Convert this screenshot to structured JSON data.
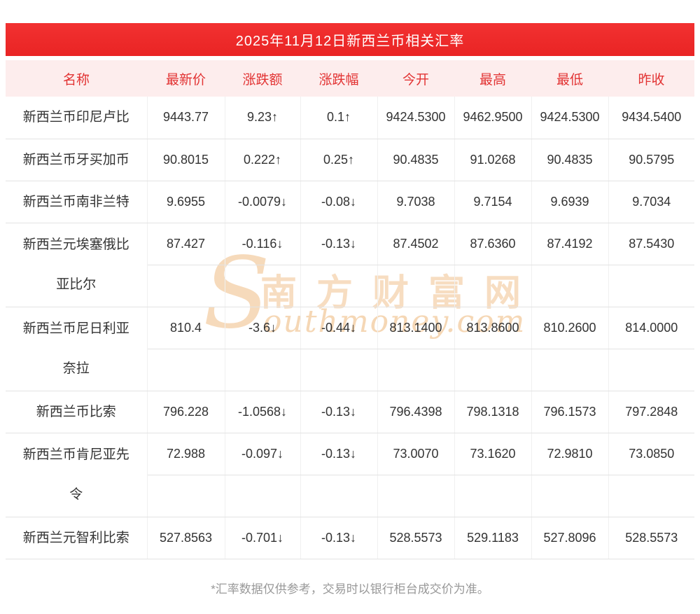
{
  "page": {
    "title": "2025年11月12日新西兰币相关汇率",
    "footnote": "*汇率数据仅供参考，交易时以银行柜台成交价为准。"
  },
  "watermark": {
    "initial": "S",
    "cn": "南方财富网",
    "en": "outhmoney.com"
  },
  "colors": {
    "banner_red": "#f23131",
    "header_bg": "#fdeded",
    "header_text": "#e23333",
    "up_red": "#e62c2c",
    "down_green": "#1ba31b",
    "watermark_orange": "#f0bd85"
  },
  "table": {
    "headers": [
      "名称",
      "最新价",
      "涨跌额",
      "涨跌幅",
      "今开",
      "最高",
      "最低",
      "昨收"
    ],
    "rows": [
      {
        "name": "新西兰币印尼卢比",
        "latest": "9443.77",
        "change": "9.23↑",
        "change_pct": "0.1↑",
        "open": "9424.5300",
        "high": "9462.9500",
        "low": "9424.5300",
        "prev_close": "9434.5400",
        "trend": "up"
      },
      {
        "name": "新西兰币牙买加币",
        "latest": "90.8015",
        "change": "0.222↑",
        "change_pct": "0.25↑",
        "open": "90.4835",
        "high": "91.0268",
        "low": "90.4835",
        "prev_close": "90.5795",
        "trend": "up"
      },
      {
        "name": "新西兰币南非兰特",
        "latest": "9.6955",
        "change": "-0.0079↓",
        "change_pct": "-0.08↓",
        "open": "9.7038",
        "high": "9.7154",
        "low": "9.6939",
        "prev_close": "9.7034",
        "trend": "down"
      },
      {
        "name": "新西兰元埃塞俄比\n亚比尔",
        "latest": "87.427",
        "change": "-0.116↓",
        "change_pct": "-0.13↓",
        "open": "87.4502",
        "high": "87.6360",
        "low": "87.4192",
        "prev_close": "87.5430",
        "trend": "down"
      },
      {
        "name": "新西兰币尼日利亚\n奈拉",
        "latest": "810.4",
        "change": "-3.6↓",
        "change_pct": "-0.44↓",
        "open": "813.1400",
        "high": "813.8600",
        "low": "810.2600",
        "prev_close": "814.0000",
        "trend": "down"
      },
      {
        "name": "新西兰币比索",
        "latest": "796.228",
        "change": "-1.0568↓",
        "change_pct": "-0.13↓",
        "open": "796.4398",
        "high": "798.1318",
        "low": "796.1573",
        "prev_close": "797.2848",
        "trend": "down"
      },
      {
        "name": "新西兰币肯尼亚先\n令",
        "latest": "72.988",
        "change": "-0.097↓",
        "change_pct": "-0.13↓",
        "open": "73.0070",
        "high": "73.1620",
        "low": "72.9810",
        "prev_close": "73.0850",
        "trend": "down"
      },
      {
        "name": "新西兰元智利比索",
        "latest": "527.8563",
        "change": "-0.701↓",
        "change_pct": "-0.13↓",
        "open": "528.5573",
        "high": "529.1183",
        "low": "527.8096",
        "prev_close": "528.5573",
        "trend": "down"
      }
    ]
  }
}
